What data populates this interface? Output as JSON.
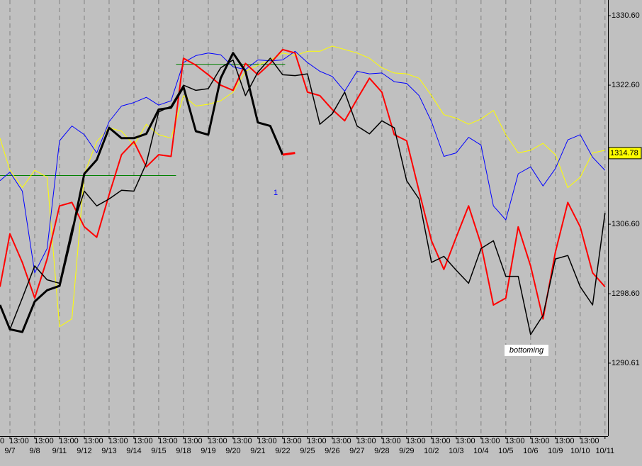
{
  "chart_data": {
    "type": "line",
    "xlim": [
      -0.4,
      24.12
    ],
    "ylim": [
      1282.2,
      1332.4
    ],
    "yticks": [
      {
        "value": 1330.6,
        "label": "1330.60"
      },
      {
        "value": 1322.6,
        "label": "1322.60"
      },
      {
        "value": 1306.6,
        "label": "1306.60"
      },
      {
        "value": 1298.6,
        "label": "1298.60"
      },
      1290.61
    ],
    "last_value": 1314.78,
    "xticks": [
      {
        "value": 0,
        "label": "9/7"
      },
      {
        "value": 1,
        "label": "9/8"
      },
      {
        "value": 2,
        "label": "9/11"
      },
      {
        "value": 3,
        "label": "9/12"
      },
      {
        "value": 4,
        "label": "9/13"
      },
      {
        "value": 5,
        "label": "9/14"
      },
      {
        "value": 6,
        "label": "9/15"
      },
      {
        "value": 7,
        "label": "9/18"
      },
      {
        "value": 8,
        "label": "9/19"
      },
      {
        "value": 9,
        "label": "9/20"
      },
      {
        "value": 10,
        "label": "9/21"
      },
      {
        "value": 11,
        "label": "9/22"
      },
      {
        "value": 12,
        "label": "9/25"
      },
      {
        "value": 13,
        "label": "9/26"
      },
      {
        "value": 14,
        "label": "9/27"
      },
      {
        "value": 15,
        "label": "9/28"
      },
      {
        "value": 16,
        "label": "9/29"
      },
      {
        "value": 17,
        "label": "10/2"
      },
      {
        "value": 18,
        "label": "10/3"
      },
      {
        "value": 19,
        "label": "10/4"
      },
      {
        "value": 20,
        "label": "10/5"
      },
      {
        "value": 21,
        "label": "10/6"
      },
      {
        "value": 22,
        "label": "10/9"
      },
      {
        "value": 23,
        "label": "10/10"
      },
      {
        "value": 24,
        "label": "10/11"
      }
    ],
    "time_labels": [
      "0",
      "13:00",
      "13:00",
      "13:00",
      "13:00",
      "13:00",
      "13:00",
      "13:00",
      "13:00",
      "13:00",
      "13:00",
      "13:00",
      "13:00",
      "13:00",
      "13:00",
      "13:00",
      "13:00",
      "13:00",
      "13:00",
      "13:00",
      "13:00",
      "13:00",
      "13:00",
      "13:00",
      "13:00"
    ],
    "x": [
      -0.4,
      0,
      0.5,
      1,
      1.5,
      2,
      2.5,
      3,
      3.5,
      4,
      4.5,
      5,
      5.5,
      6,
      6.5,
      7,
      7.5,
      8,
      8.5,
      9,
      9.5,
      10,
      10.5,
      11,
      11.5,
      12,
      12.5,
      13,
      13.5,
      14,
      14.5,
      15,
      15.5,
      16,
      16.5,
      17,
      17.5,
      18,
      18.5,
      19,
      19.5,
      20,
      20.5,
      21,
      21.5,
      22,
      22.5,
      23,
      23.5,
      24
    ],
    "series": [
      {
        "color": "#ffff00",
        "width": 1,
        "values": [
          1316.5,
          1312.8,
          1310.8,
          1312.8,
          1312.0,
          1294.8,
          1295.7,
          1312.4,
          1316.1,
          1317.7,
          1317.3,
          1315.7,
          1318.1,
          1316.9,
          1316.5,
          1321.4,
          1320.2,
          1320.4,
          1320.8,
          1321.8,
          1324.2,
          1324.9,
          1325.5,
          1326.3,
          1326.0,
          1326.5,
          1326.5,
          1327.1,
          1326.7,
          1326.3,
          1325.7,
          1324.6,
          1324.0,
          1323.9,
          1323.4,
          1321.4,
          1319.2,
          1318.8,
          1318.1,
          1318.7,
          1319.7,
          1316.9,
          1314.8,
          1315.1,
          1315.9,
          1314.6,
          1310.8,
          1312.0,
          1314.8,
          1315.1
        ]
      },
      {
        "color": "#0000ff",
        "width": 1,
        "values": [
          1311.6,
          1312.6,
          1310.4,
          1301.0,
          1303.8,
          1316.2,
          1317.9,
          1316.9,
          1314.8,
          1318.4,
          1320.2,
          1320.6,
          1321.2,
          1320.3,
          1320.8,
          1325.2,
          1326.0,
          1326.3,
          1326.1,
          1324.7,
          1324.4,
          1325.5,
          1325.4,
          1325.5,
          1326.5,
          1325.2,
          1324.2,
          1323.6,
          1321.9,
          1324.2,
          1323.9,
          1324.0,
          1323.0,
          1322.8,
          1321.4,
          1318.4,
          1314.4,
          1314.8,
          1316.6,
          1315.7,
          1308.7,
          1307.1,
          1312.4,
          1313.2,
          1311.0,
          1313.0,
          1316.3,
          1316.9,
          1314.3,
          1312.8
        ]
      },
      {
        "color": "#ff0000",
        "width": 2,
        "values": [
          1299.4,
          1305.5,
          1302.2,
          1298.1,
          1302.6,
          1308.7,
          1309.1,
          1306.3,
          1305.1,
          1310.0,
          1314.6,
          1316.1,
          1313.2,
          1314.6,
          1314.4,
          1325.7,
          1324.9,
          1323.8,
          1322.6,
          1322.0,
          1325.1,
          1323.8,
          1325.1,
          1326.7,
          1326.3,
          1321.8,
          1321.4,
          1319.8,
          1318.5,
          1321.0,
          1323.4,
          1321.8,
          1316.9,
          1316.2,
          1310.4,
          1304.7,
          1301.4,
          1305.1,
          1308.7,
          1304.3,
          1297.3,
          1298.1,
          1306.3,
          1301.8,
          1295.7,
          1303.4,
          1309.1,
          1306.3,
          1301.0,
          1299.4
        ]
      },
      {
        "color": "#000000",
        "width": 1.5,
        "values": [
          1297.3,
          1294.5,
          1298.1,
          1301.8,
          1300.2,
          1299.8,
          1306.1,
          1310.4,
          1308.7,
          1309.5,
          1310.5,
          1310.4,
          1313.6,
          1319.5,
          1320.2,
          1322.6,
          1322.0,
          1322.2,
          1324.6,
          1325.5,
          1321.4,
          1324.1,
          1325.7,
          1323.8,
          1323.7,
          1323.9,
          1318.1,
          1319.3,
          1321.8,
          1317.9,
          1317.0,
          1318.5,
          1317.7,
          1311.6,
          1309.5,
          1302.2,
          1302.9,
          1301.3,
          1299.8,
          1303.8,
          1304.7,
          1300.6,
          1300.6,
          1293.9,
          1296.1,
          1302.6,
          1303.0,
          1299.4,
          1297.3,
          1307.9
        ]
      },
      {
        "color": "#000000",
        "width": 3,
        "values": [
          1297.3,
          1294.5,
          1294.2,
          1297.7,
          1299.0,
          1299.5,
          1305.5,
          1312.4,
          1314.0,
          1317.7,
          1316.5,
          1316.5,
          1317.0,
          1319.8,
          1320.0,
          1322.4,
          1317.3,
          1316.9,
          1323.4,
          1326.3,
          1324.2,
          1318.3,
          1317.9,
          1314.6,
          null,
          null,
          null,
          null,
          null,
          null,
          null,
          null,
          null,
          null,
          null,
          null,
          null,
          null,
          null,
          null,
          null,
          null,
          null,
          null,
          null,
          null,
          null,
          null,
          null,
          null
        ]
      },
      {
        "color": "#ff0000",
        "width": 3,
        "values": [
          null,
          null,
          null,
          null,
          null,
          null,
          null,
          null,
          null,
          null,
          null,
          null,
          null,
          null,
          null,
          null,
          null,
          null,
          null,
          null,
          null,
          null,
          null,
          1314.6,
          1314.8,
          null,
          null,
          null,
          null,
          null,
          null,
          null,
          null,
          null,
          null,
          null,
          null,
          null,
          null,
          null,
          null,
          null,
          null,
          null,
          null,
          null,
          null,
          null,
          null,
          null
        ]
      }
    ],
    "levels": [
      {
        "color": "#008000",
        "y": 1312.2,
        "x": [
          -0.4,
          6.7
        ]
      },
      {
        "color": "#008000",
        "y": 1325.0,
        "x": [
          6.7,
          11.1
        ]
      }
    ],
    "annotations": [
      "1",
      "bottoming"
    ]
  }
}
